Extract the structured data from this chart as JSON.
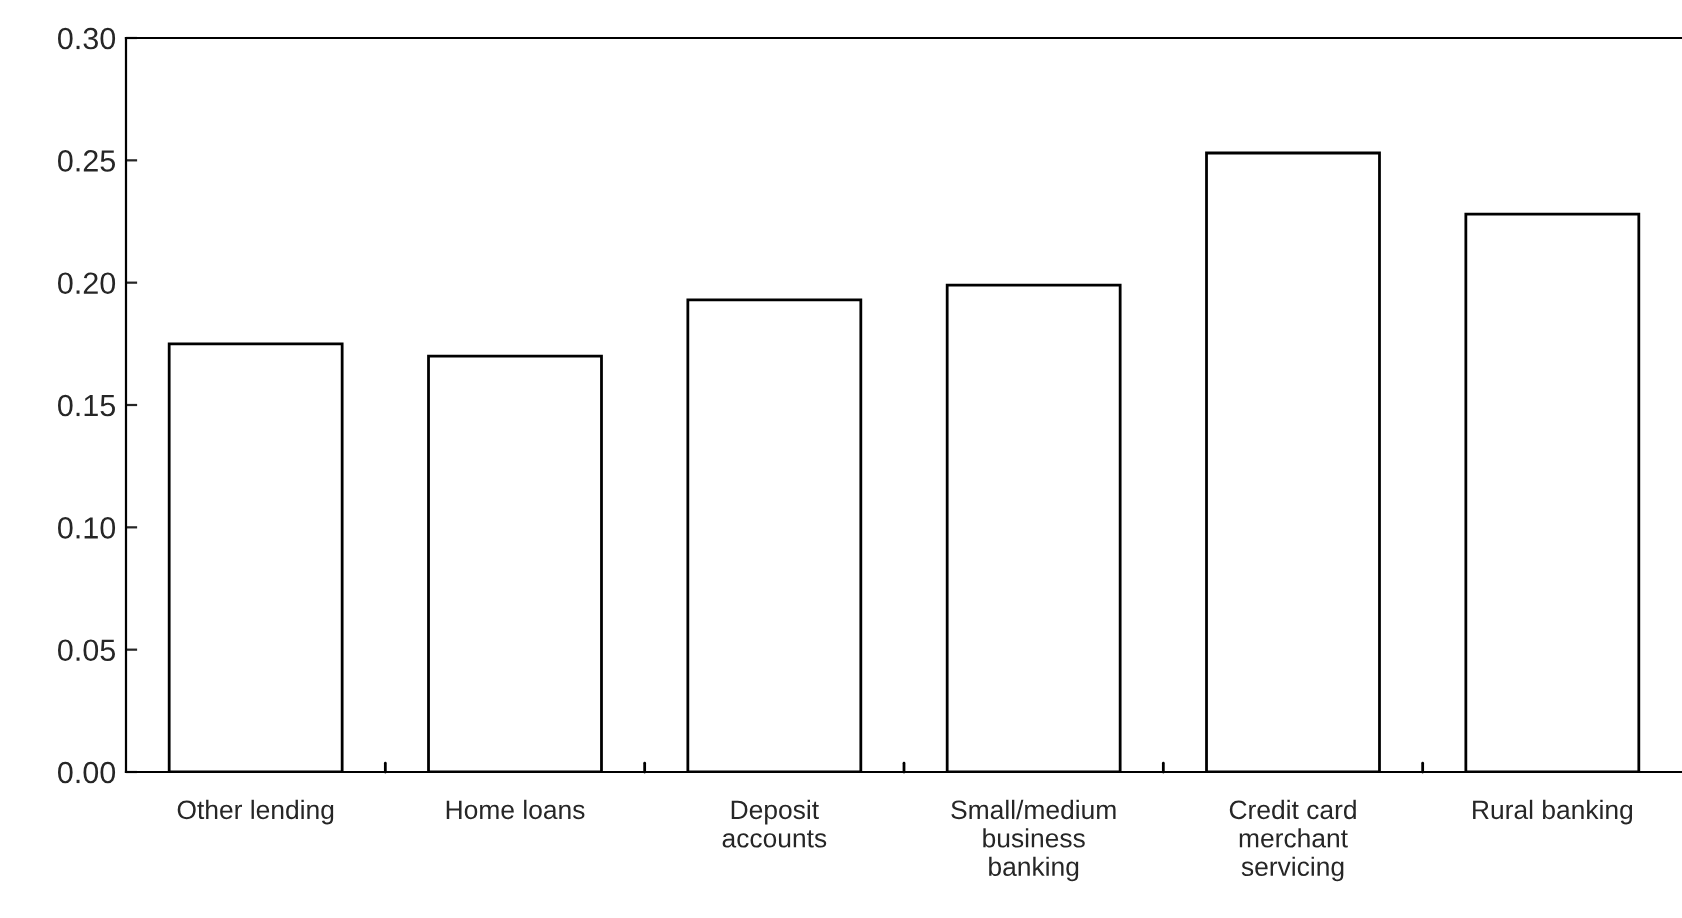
{
  "chart_data": {
    "type": "bar",
    "categories": [
      "Other lending",
      "Home loans",
      "Deposit\naccounts",
      "Small/medium\nbusiness\nbanking",
      "Credit card\nmerchant\nservicing",
      "Rural banking"
    ],
    "values": [
      0.175,
      0.17,
      0.193,
      0.199,
      0.253,
      0.228
    ],
    "color": "#ffffff",
    "ylim": [
      0,
      0.3
    ],
    "yticks": [
      {
        "value": 0,
        "label": "0.00"
      },
      {
        "value": 0.05,
        "label": "0.05"
      },
      {
        "value": 0.1,
        "label": "0.10"
      },
      {
        "value": 0.15,
        "label": "0.15"
      },
      {
        "value": 0.2,
        "label": "0.20"
      },
      {
        "value": 0.25,
        "label": "0.25"
      },
      {
        "value": 0.3,
        "label": "0.30"
      }
    ],
    "grid": false
  }
}
